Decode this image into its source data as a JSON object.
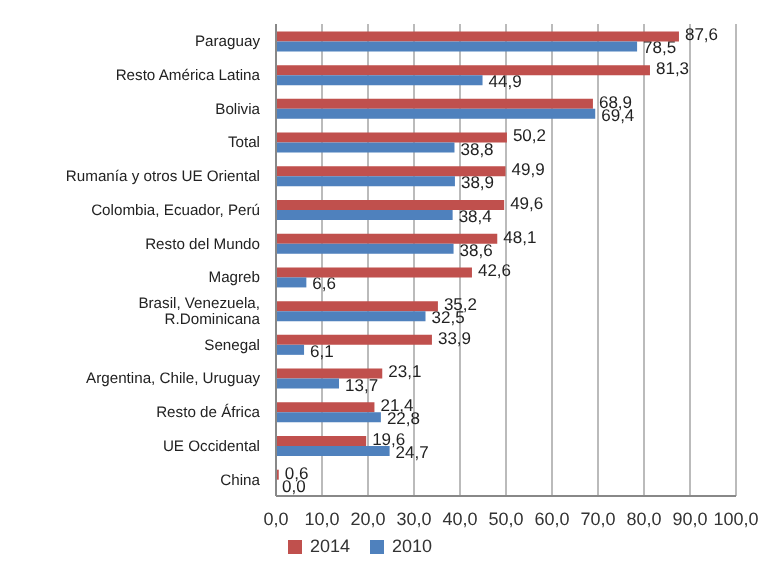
{
  "chart_data": {
    "type": "bar",
    "orientation": "horizontal",
    "categories": [
      "Paraguay",
      "Resto América Latina",
      "Bolivia",
      "Total",
      "Rumanía y otros UE Oriental",
      "Colombia, Ecuador, Perú",
      "Resto del Mundo",
      "Magreb",
      "Brasil, Venezuela, R.Dominicana",
      "Senegal",
      "Argentina, Chile, Uruguay",
      "Resto de África",
      "UE Occidental",
      "China"
    ],
    "series": [
      {
        "name": "2014",
        "color": "#c0504d",
        "values": [
          87.6,
          81.3,
          68.9,
          50.2,
          49.9,
          49.6,
          48.1,
          42.6,
          35.2,
          33.9,
          23.1,
          21.4,
          19.6,
          0.6
        ],
        "value_labels": [
          "87,6",
          "81,3",
          "68,9",
          "50,2",
          "49,9",
          "49,6",
          "48,1",
          "42,6",
          "35,2",
          "33,9",
          "23,1",
          "21,4",
          "19,6",
          "0,6"
        ]
      },
      {
        "name": "2010",
        "color": "#4f81bd",
        "values": [
          78.5,
          44.9,
          69.4,
          38.8,
          38.9,
          38.4,
          38.6,
          6.6,
          32.5,
          6.1,
          13.7,
          22.8,
          24.7,
          0.0
        ],
        "value_labels": [
          "78,5",
          "44,9",
          "69,4",
          "38,8",
          "38,9",
          "38,4",
          "38,6",
          "6,6",
          "32,5",
          "6,1",
          "13,7",
          "22,8",
          "24,7",
          "0,0"
        ]
      }
    ],
    "xlim": [
      0,
      100
    ],
    "xticks": [
      {
        "value": 0,
        "label": "0,0"
      },
      {
        "value": 10,
        "label": "10,0"
      },
      {
        "value": 20,
        "label": "20,0"
      },
      {
        "value": 30,
        "label": "30,0"
      },
      {
        "value": 40,
        "label": "40,0"
      },
      {
        "value": 50,
        "label": "50,0"
      },
      {
        "value": 60,
        "label": "60,0"
      },
      {
        "value": 70,
        "label": "70,0"
      },
      {
        "value": 80,
        "label": "80,0"
      },
      {
        "value": 90,
        "label": "90,0"
      },
      {
        "value": 100,
        "label": "100,0"
      }
    ],
    "grid": "x",
    "legend": "bottom"
  }
}
